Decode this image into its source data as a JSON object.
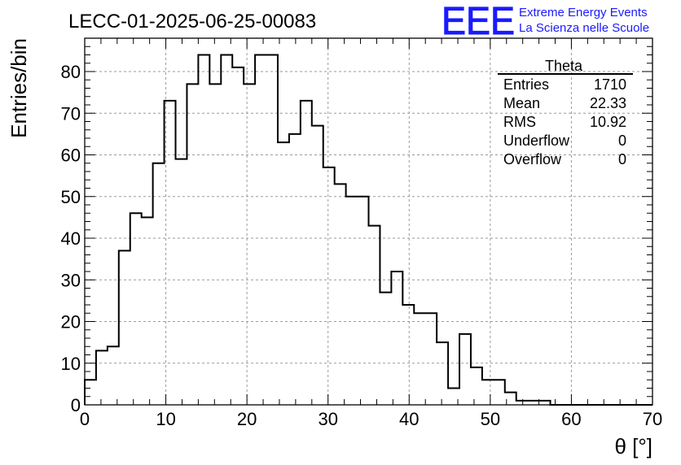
{
  "header": {
    "run_title": "LECC-01-2025-06-25-00083",
    "logo_text": "EEE",
    "logo_line1": "Extreme Energy Events",
    "logo_line2": "La Scienza nelle Scuole"
  },
  "stats_box": {
    "title": "Theta",
    "rows": [
      {
        "label": "Entries",
        "value": "1710"
      },
      {
        "label": "Mean",
        "value": "22.33"
      },
      {
        "label": "RMS",
        "value": "10.92"
      },
      {
        "label": "Underflow",
        "value": "0"
      },
      {
        "label": "Overflow",
        "value": "0"
      }
    ]
  },
  "chart_data": {
    "type": "histogram",
    "title": "LECC-01-2025-06-25-00083",
    "xlabel": "θ [°]",
    "ylabel": "Entries/bin",
    "xlim": [
      0,
      70
    ],
    "ylim": [
      0,
      88
    ],
    "bin_width": 1.4,
    "x_ticks": [
      0,
      10,
      20,
      30,
      40,
      50,
      60,
      70
    ],
    "y_ticks": [
      0,
      10,
      20,
      30,
      40,
      50,
      60,
      70,
      80
    ],
    "grid": true,
    "line_color": "#000000",
    "values": [
      6,
      13,
      14,
      37,
      46,
      45,
      58,
      73,
      59,
      77,
      84,
      77,
      84,
      81,
      77,
      84,
      84,
      63,
      65,
      73,
      67,
      57,
      53,
      50,
      50,
      43,
      27,
      32,
      24,
      22,
      22,
      15,
      4,
      17,
      9,
      6,
      6,
      3,
      1,
      1,
      1,
      0,
      0,
      0,
      0,
      0,
      0,
      0,
      0,
      0
    ]
  },
  "colors": {
    "logo_blue": "#1a1aff",
    "grid": "#9a9a9a"
  }
}
